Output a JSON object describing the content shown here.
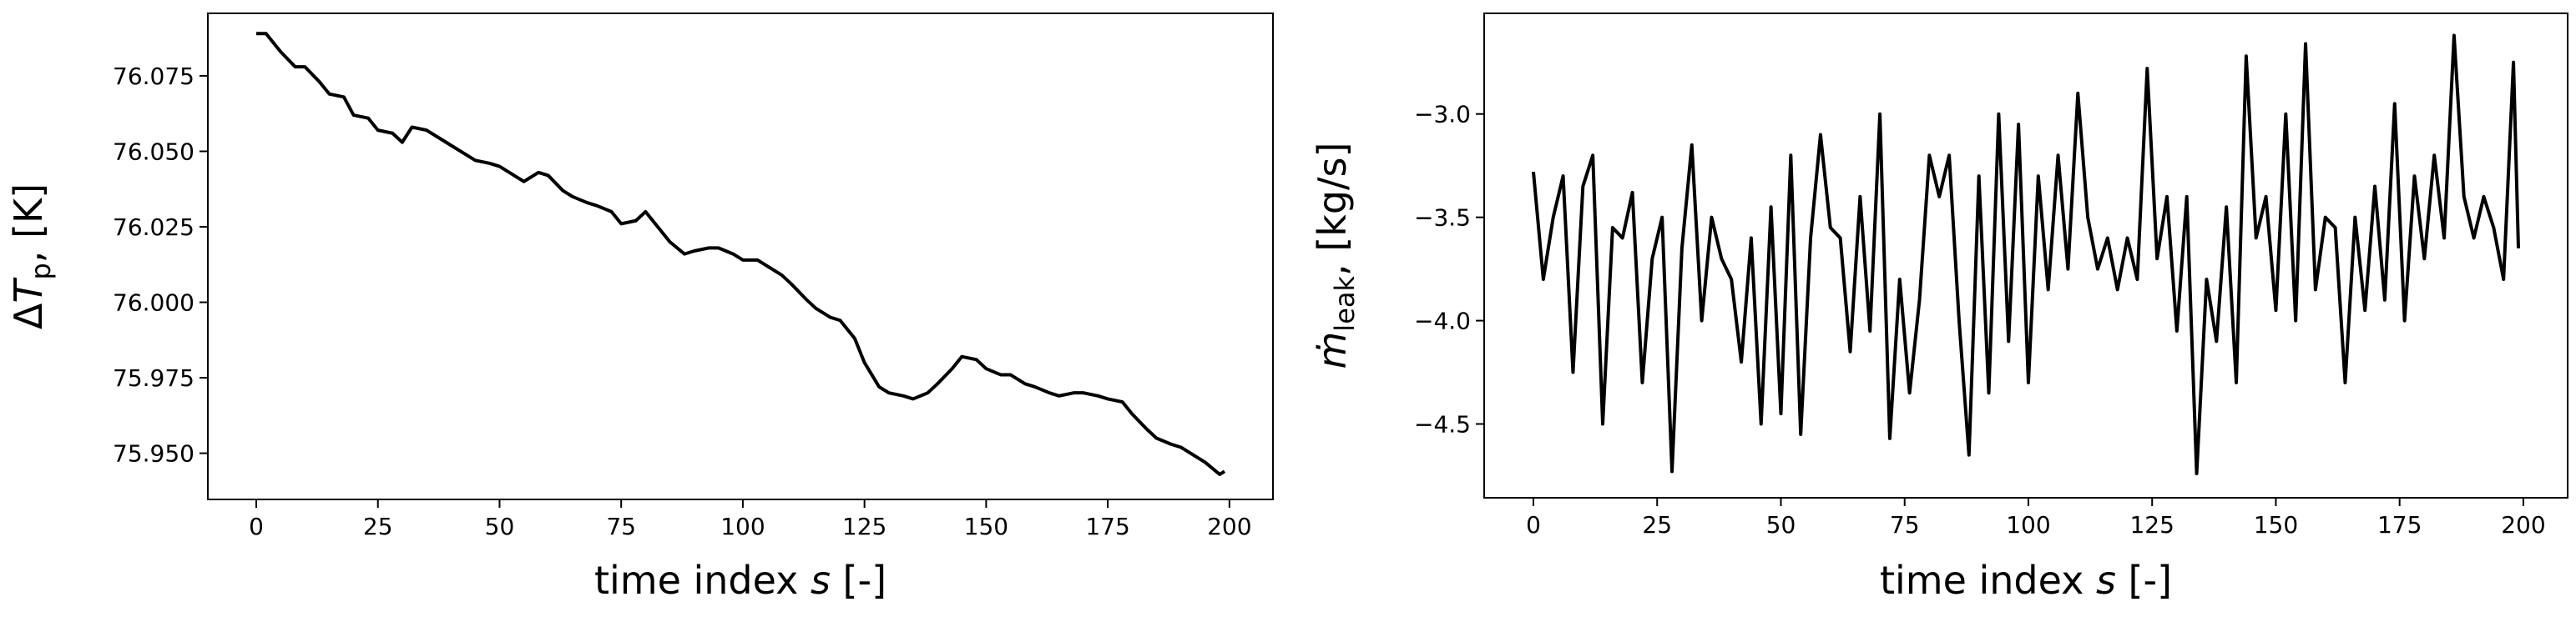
{
  "chart_data": [
    {
      "type": "line",
      "color": "#000000",
      "xlabel": {
        "text": "time index ",
        "symbol": "s",
        "suffix": " [-]"
      },
      "ylabel": {
        "prefix": "Δ",
        "symbol": "T",
        "subscript": "p",
        "suffix": ", [K]"
      },
      "x": [
        0,
        2,
        5,
        8,
        10,
        13,
        15,
        18,
        20,
        23,
        25,
        28,
        30,
        32,
        35,
        38,
        40,
        43,
        45,
        48,
        50,
        53,
        55,
        58,
        60,
        63,
        65,
        68,
        70,
        73,
        75,
        78,
        80,
        83,
        85,
        88,
        90,
        93,
        95,
        98,
        100,
        103,
        105,
        108,
        110,
        113,
        115,
        118,
        120,
        123,
        125,
        128,
        130,
        133,
        135,
        138,
        140,
        143,
        145,
        148,
        150,
        153,
        155,
        158,
        160,
        163,
        165,
        168,
        170,
        173,
        175,
        178,
        180,
        183,
        185,
        188,
        190,
        193,
        195,
        198,
        199
      ],
      "series": [
        {
          "name": "dTp",
          "values": [
            76.089,
            76.089,
            76.083,
            76.078,
            76.078,
            76.073,
            76.069,
            76.068,
            76.062,
            76.061,
            76.057,
            76.056,
            76.053,
            76.058,
            76.057,
            76.054,
            76.052,
            76.049,
            76.047,
            76.046,
            76.045,
            76.042,
            76.04,
            76.043,
            76.042,
            76.037,
            76.035,
            76.033,
            76.032,
            76.03,
            76.026,
            76.027,
            76.03,
            76.024,
            76.02,
            76.016,
            76.017,
            76.018,
            76.018,
            76.016,
            76.014,
            76.014,
            76.012,
            76.009,
            76.006,
            76.001,
            75.998,
            75.995,
            75.994,
            75.988,
            75.98,
            75.972,
            75.97,
            75.969,
            75.968,
            75.97,
            75.973,
            75.978,
            75.982,
            75.981,
            75.978,
            75.976,
            75.976,
            75.973,
            75.972,
            75.97,
            75.969,
            75.97,
            75.97,
            75.969,
            75.968,
            75.967,
            75.963,
            75.958,
            75.955,
            75.953,
            75.952,
            75.949,
            75.947,
            75.943,
            75.944
          ]
        }
      ],
      "xlim": [
        -9.95,
        208.95
      ],
      "xticks": [
        0,
        25,
        50,
        75,
        100,
        125,
        150,
        175,
        200
      ],
      "ylim": [
        75.9347,
        76.0957
      ],
      "yticks": [
        {
          "value": 75.95,
          "label": "75.950"
        },
        75.975,
        {
          "value": 76.0,
          "label": "76.000"
        },
        76.025,
        {
          "value": 76.05,
          "label": "76.050"
        },
        76.075
      ]
    },
    {
      "type": "line",
      "color": "#000000",
      "xlabel": {
        "text": "time index ",
        "symbol": "s",
        "suffix": " [-]"
      },
      "ylabel": {
        "prefix": "",
        "symbol": "ṁ",
        "subscript": "leak",
        "suffix": ", [kg/s]"
      },
      "x": [
        0,
        2,
        4,
        6,
        8,
        10,
        12,
        14,
        16,
        18,
        20,
        22,
        24,
        26,
        28,
        30,
        32,
        34,
        36,
        38,
        40,
        42,
        44,
        46,
        48,
        50,
        52,
        54,
        56,
        58,
        60,
        62,
        64,
        66,
        68,
        70,
        72,
        74,
        76,
        78,
        80,
        82,
        84,
        86,
        88,
        90,
        92,
        94,
        96,
        98,
        100,
        102,
        104,
        106,
        108,
        110,
        112,
        114,
        116,
        118,
        120,
        122,
        124,
        126,
        128,
        130,
        132,
        134,
        136,
        138,
        140,
        142,
        144,
        146,
        148,
        150,
        152,
        154,
        156,
        158,
        160,
        162,
        164,
        166,
        168,
        170,
        172,
        174,
        176,
        178,
        180,
        182,
        184,
        186,
        188,
        190,
        192,
        194,
        196,
        198,
        199
      ],
      "series": [
        {
          "name": "mleak",
          "values": [
            -3.28,
            -3.8,
            -3.5,
            -3.3,
            -4.25,
            -3.35,
            -3.2,
            -4.5,
            -3.55,
            -3.6,
            -3.38,
            -4.3,
            -3.7,
            -3.5,
            -4.73,
            -3.65,
            -3.15,
            -4.0,
            -3.5,
            -3.7,
            -3.8,
            -4.2,
            -3.6,
            -4.5,
            -3.45,
            -4.45,
            -3.2,
            -4.55,
            -3.6,
            -3.1,
            -3.55,
            -3.6,
            -4.15,
            -3.4,
            -4.05,
            -3.0,
            -4.57,
            -3.8,
            -4.35,
            -3.9,
            -3.2,
            -3.4,
            -3.2,
            -4.0,
            -4.65,
            -3.3,
            -4.35,
            -3.0,
            -4.1,
            -3.05,
            -4.3,
            -3.3,
            -3.85,
            -3.2,
            -3.75,
            -2.9,
            -3.5,
            -3.75,
            -3.6,
            -3.85,
            -3.6,
            -3.8,
            -2.78,
            -3.7,
            -3.4,
            -4.05,
            -3.4,
            -4.74,
            -3.8,
            -4.1,
            -3.45,
            -4.3,
            -2.72,
            -3.6,
            -3.4,
            -3.95,
            -3.0,
            -4.0,
            -2.66,
            -3.85,
            -3.5,
            -3.55,
            -4.3,
            -3.5,
            -3.95,
            -3.35,
            -3.9,
            -2.95,
            -4.0,
            -3.3,
            -3.7,
            -3.2,
            -3.6,
            -2.62,
            -3.4,
            -3.6,
            -3.4,
            -3.55,
            -3.8,
            -2.75,
            -3.65
          ]
        }
      ],
      "xlim": [
        -9.95,
        208.95
      ],
      "xticks": [
        0,
        25,
        50,
        75,
        100,
        125,
        150,
        175,
        200
      ],
      "ylim": [
        -4.857,
        -2.513
      ],
      "yticks": [
        {
          "value": -4.5,
          "label": "−4.5"
        },
        {
          "value": -4.0,
          "label": "−4.0"
        },
        {
          "value": -3.5,
          "label": "−3.5"
        },
        {
          "value": -3.0,
          "label": "−3.0"
        }
      ]
    }
  ]
}
